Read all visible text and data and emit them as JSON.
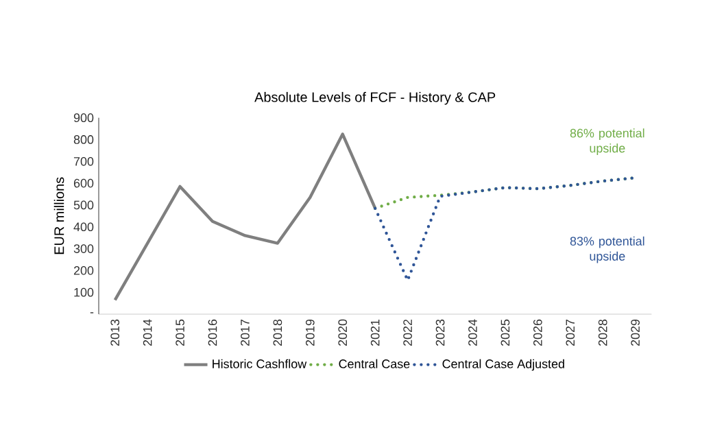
{
  "chart_data": {
    "type": "line",
    "title": "Absolute Levels of FCF - History & CAP",
    "ylabel": "EUR millions",
    "categories": [
      "2013",
      "2014",
      "2015",
      "2016",
      "2017",
      "2018",
      "2019",
      "2020",
      "2021",
      "2022",
      "2023",
      "2024",
      "2025",
      "2026",
      "2027",
      "2028",
      "2029"
    ],
    "series": [
      {
        "name": "Historic Cashflow",
        "color": "#7f7f7f",
        "line_style": "solid",
        "values": [
          65,
          325,
          585,
          425,
          360,
          325,
          535,
          825,
          485,
          null,
          null,
          null,
          null,
          null,
          null,
          null,
          null
        ]
      },
      {
        "name": "Central Case",
        "color": "#70ad47",
        "line_style": "dotted",
        "values": [
          null,
          null,
          null,
          null,
          null,
          null,
          null,
          null,
          485,
          535,
          545,
          560,
          580,
          575,
          590,
          610,
          625
        ]
      },
      {
        "name": "Central Case Adjusted",
        "color": "#2f5597",
        "line_style": "dotted",
        "values": [
          null,
          null,
          null,
          null,
          null,
          null,
          null,
          null,
          485,
          155,
          540,
          560,
          580,
          575,
          590,
          610,
          625
        ]
      }
    ],
    "ylim": [
      0,
      900
    ],
    "yticks": [
      {
        "value": 0,
        "label": "-"
      },
      100,
      200,
      300,
      400,
      500,
      600,
      700,
      800,
      900
    ],
    "grid": false,
    "legend": "bottom",
    "marker": "none",
    "annotations": [
      "86% potential upside",
      "83% potential upside"
    ]
  }
}
